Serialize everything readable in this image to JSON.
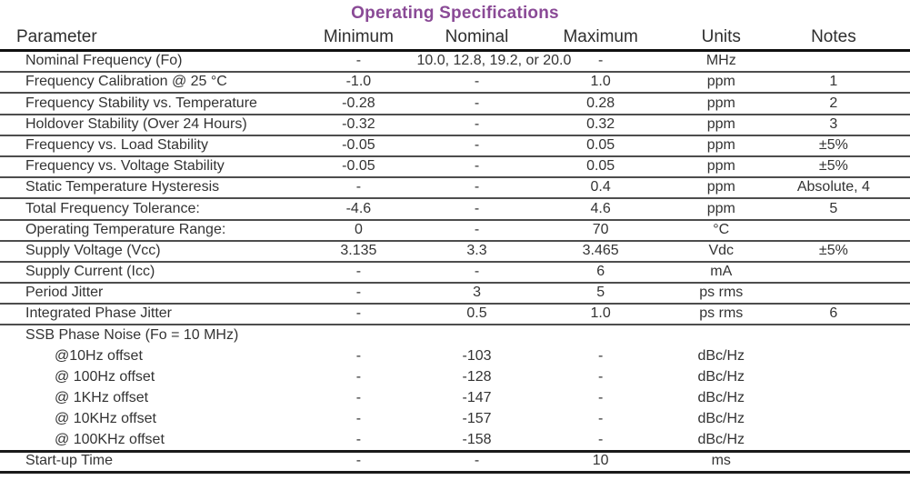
{
  "title": {
    "text": "Operating Specifications"
  },
  "colors": {
    "title": "#8a4a96",
    "text": "#333333",
    "row_rule": "#4d4d4d",
    "heavy_rule": "#1a1a1a",
    "background": "#ffffff"
  },
  "table": {
    "columns": [
      "Parameter",
      "Minimum",
      "Nominal",
      "Maximum",
      "Units",
      "Notes"
    ],
    "rows": [
      {
        "parameter": "Nominal Frequency (Fo)",
        "min": "-",
        "nom": "10.0, 12.8, 19.2, or 20.0",
        "max": "-",
        "units": "MHz",
        "notes": "",
        "indent": false,
        "rule_after": "normal"
      },
      {
        "parameter": "Frequency Calibration @ 25 °C",
        "min": "-1.0",
        "nom": "-",
        "max": "1.0",
        "units": "ppm",
        "notes": "1",
        "indent": false,
        "rule_after": "normal"
      },
      {
        "parameter": "Frequency Stability vs. Temperature",
        "min": "-0.28",
        "nom": "-",
        "max": "0.28",
        "units": "ppm",
        "notes": "2",
        "indent": false,
        "rule_after": "normal"
      },
      {
        "parameter": "Holdover Stability (Over 24 Hours)",
        "min": "-0.32",
        "nom": "-",
        "max": "0.32",
        "units": "ppm",
        "notes": "3",
        "indent": false,
        "rule_after": "normal"
      },
      {
        "parameter": "Frequency vs. Load Stability",
        "min": "-0.05",
        "nom": "-",
        "max": "0.05",
        "units": "ppm",
        "notes": "±5%",
        "indent": false,
        "rule_after": "normal"
      },
      {
        "parameter": "Frequency vs. Voltage Stability",
        "min": "-0.05",
        "nom": "-",
        "max": "0.05",
        "units": "ppm",
        "notes": "±5%",
        "indent": false,
        "rule_after": "normal"
      },
      {
        "parameter": "Static Temperature Hysteresis",
        "min": "-",
        "nom": "-",
        "max": "0.4",
        "units": "ppm",
        "notes": "Absolute, 4",
        "indent": false,
        "rule_after": "normal"
      },
      {
        "parameter": "Total Frequency Tolerance:",
        "min": "-4.6",
        "nom": "-",
        "max": "4.6",
        "units": "ppm",
        "notes": "5",
        "indent": false,
        "rule_after": "normal"
      },
      {
        "parameter": "Operating Temperature Range:",
        "min": "0",
        "nom": "-",
        "max": "70",
        "units": "°C",
        "notes": "",
        "indent": false,
        "rule_after": "normal"
      },
      {
        "parameter": "Supply Voltage (Vcc)",
        "min": "3.135",
        "nom": "3.3",
        "max": "3.465",
        "units": "Vdc",
        "notes": "±5%",
        "indent": false,
        "rule_after": "normal"
      },
      {
        "parameter": "Supply Current (Icc)",
        "min": "-",
        "nom": "-",
        "max": "6",
        "units": "mA",
        "notes": "",
        "indent": false,
        "rule_after": "normal"
      },
      {
        "parameter": "Period Jitter",
        "min": "-",
        "nom": "3",
        "max": "5",
        "units": "ps rms",
        "notes": "",
        "indent": false,
        "rule_after": "normal"
      },
      {
        "parameter": "Integrated Phase Jitter",
        "min": "-",
        "nom": "0.5",
        "max": "1.0",
        "units": "ps rms",
        "notes": "6",
        "indent": false,
        "rule_after": "normal"
      },
      {
        "parameter": "SSB Phase Noise (Fo = 10 MHz)",
        "min": "",
        "nom": "",
        "max": "",
        "units": "",
        "notes": "",
        "indent": false,
        "rule_after": "none"
      },
      {
        "parameter": "@10Hz offset",
        "min": "-",
        "nom": "-103",
        "max": "-",
        "units": "dBc/Hz",
        "notes": "",
        "indent": true,
        "rule_after": "none"
      },
      {
        "parameter": "@ 100Hz offset",
        "min": "-",
        "nom": "-128",
        "max": "-",
        "units": "dBc/Hz",
        "notes": "",
        "indent": true,
        "rule_after": "none"
      },
      {
        "parameter": "@ 1KHz offset",
        "min": "-",
        "nom": "-147",
        "max": "-",
        "units": "dBc/Hz",
        "notes": "",
        "indent": true,
        "rule_after": "none"
      },
      {
        "parameter": "@ 10KHz offset",
        "min": "-",
        "nom": "-157",
        "max": "-",
        "units": "dBc/Hz",
        "notes": "",
        "indent": true,
        "rule_after": "none"
      },
      {
        "parameter": "@ 100KHz offset",
        "min": "-",
        "nom": "-158",
        "max": "-",
        "units": "dBc/Hz",
        "notes": "",
        "indent": true,
        "rule_after": "heavy"
      },
      {
        "parameter": "Start-up Time",
        "min": "-",
        "nom": "-",
        "max": "10",
        "units": "ms",
        "notes": "",
        "indent": false,
        "rule_after": "heavy"
      }
    ]
  }
}
